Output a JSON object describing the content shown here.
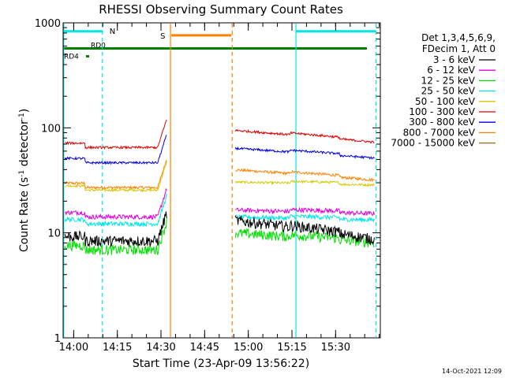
{
  "chart_data": {
    "type": "line",
    "title": "RHESSI Observing Summary Count Rates",
    "xlabel": "Start Time (23-Apr-09 13:56:22)",
    "ylabel_main": "Count Rate (s",
    "ylabel_sup1": "-1",
    "ylabel_mid": " detector",
    "ylabel_sup2": "-1",
    "ylabel_end": ")",
    "yscale": "log",
    "ylim": [
      1,
      1000
    ],
    "x_units": "minutes after 13:56:22",
    "xlim": [
      0,
      109
    ],
    "x_ticks": [
      {
        "x": 3.63,
        "label": "14:00"
      },
      {
        "x": 18.63,
        "label": "14:15"
      },
      {
        "x": 33.63,
        "label": "14:30"
      },
      {
        "x": 48.63,
        "label": "14:45"
      },
      {
        "x": 63.63,
        "label": "15:00"
      },
      {
        "x": 78.63,
        "label": "15:15"
      },
      {
        "x": 93.63,
        "label": "15:30"
      }
    ],
    "y_ticks": [
      {
        "y": 1,
        "label": "1"
      },
      {
        "y": 10,
        "label": "10"
      },
      {
        "y": 100,
        "label": "100"
      },
      {
        "y": 1000,
        "label": "1000"
      }
    ],
    "legend": {
      "position": "right",
      "header": [
        "Det 1,3,4,5,6,9,",
        "FDecim 1, Att 0"
      ]
    },
    "series": [
      {
        "name": "3 - 6 keV",
        "color": "#000000",
        "pre": 8.4,
        "post_peak": 13.2,
        "post_end": 8.5,
        "noise": 0.12
      },
      {
        "name": "6 - 12 keV",
        "color": "#e000e0",
        "pre": 14.2,
        "post_peak": 16.5,
        "post_end": 15.2,
        "noise": 0.05
      },
      {
        "name": "12 - 25 keV",
        "color": "#00e000",
        "pre": 6.9,
        "post_peak": 10.0,
        "post_end": 8.0,
        "noise": 0.11
      },
      {
        "name": "25 - 50 keV",
        "color": "#00e6e6",
        "pre": 12.2,
        "post_peak": 14.2,
        "post_end": 13.2,
        "noise": 0.05
      },
      {
        "name": "50 - 100 keV",
        "color": "#d4c800",
        "pre": 25.5,
        "post_peak": 30.5,
        "post_end": 28.5,
        "noise": 0.025
      },
      {
        "name": "100 - 300 keV",
        "color": "#e00000",
        "pre": 65.0,
        "post_peak": 95.0,
        "post_end": 72.0,
        "noise": 0.025
      },
      {
        "name": "300 - 800 keV",
        "color": "#0000dd",
        "pre": 46.5,
        "post_peak": 64.0,
        "post_end": 51.0,
        "noise": 0.025
      },
      {
        "name": "800 - 7000 keV",
        "color": "#ff8000",
        "pre": 27.0,
        "post_peak": 40.0,
        "post_end": 31.5,
        "noise": 0.03
      },
      {
        "name": "7000 - 15000 keV",
        "color": "#9a7000",
        "pre": null,
        "post_peak": null,
        "post_end": null,
        "noise": 0
      }
    ],
    "data_gap": {
      "start": 36.9,
      "end": 58.1
    },
    "overlays": {
      "night_N": {
        "label": "N",
        "color": "#00e6e6",
        "intervals": [
          [
            0,
            13.5
          ],
          [
            80,
            107.5
          ]
        ],
        "level": 830
      },
      "saa_S": {
        "label": "S",
        "color": "#ff8000",
        "intervals": [
          [
            36.9,
            58.1
          ]
        ],
        "level": 760
      },
      "rd0": {
        "label": "RD0",
        "color": "#008000",
        "level": 570
      },
      "rd4": {
        "label": "RD4",
        "color": "#008000",
        "level": 480
      }
    },
    "vertical_lines": [
      {
        "x": 0.2,
        "color": "#00e6e6",
        "style": "solid"
      },
      {
        "x": 13.5,
        "color": "#00e6e6",
        "style": "dashed"
      },
      {
        "x": 36.9,
        "color": "#ff8000",
        "style": "solid"
      },
      {
        "x": 58.1,
        "color": "#ff8000",
        "style": "dashed"
      },
      {
        "x": 80.0,
        "color": "#00e6e6",
        "style": "solid"
      },
      {
        "x": 107.5,
        "color": "#00e6e6",
        "style": "dashed"
      }
    ]
  },
  "footer_timestamp": "14-Oct-2021 12:09"
}
